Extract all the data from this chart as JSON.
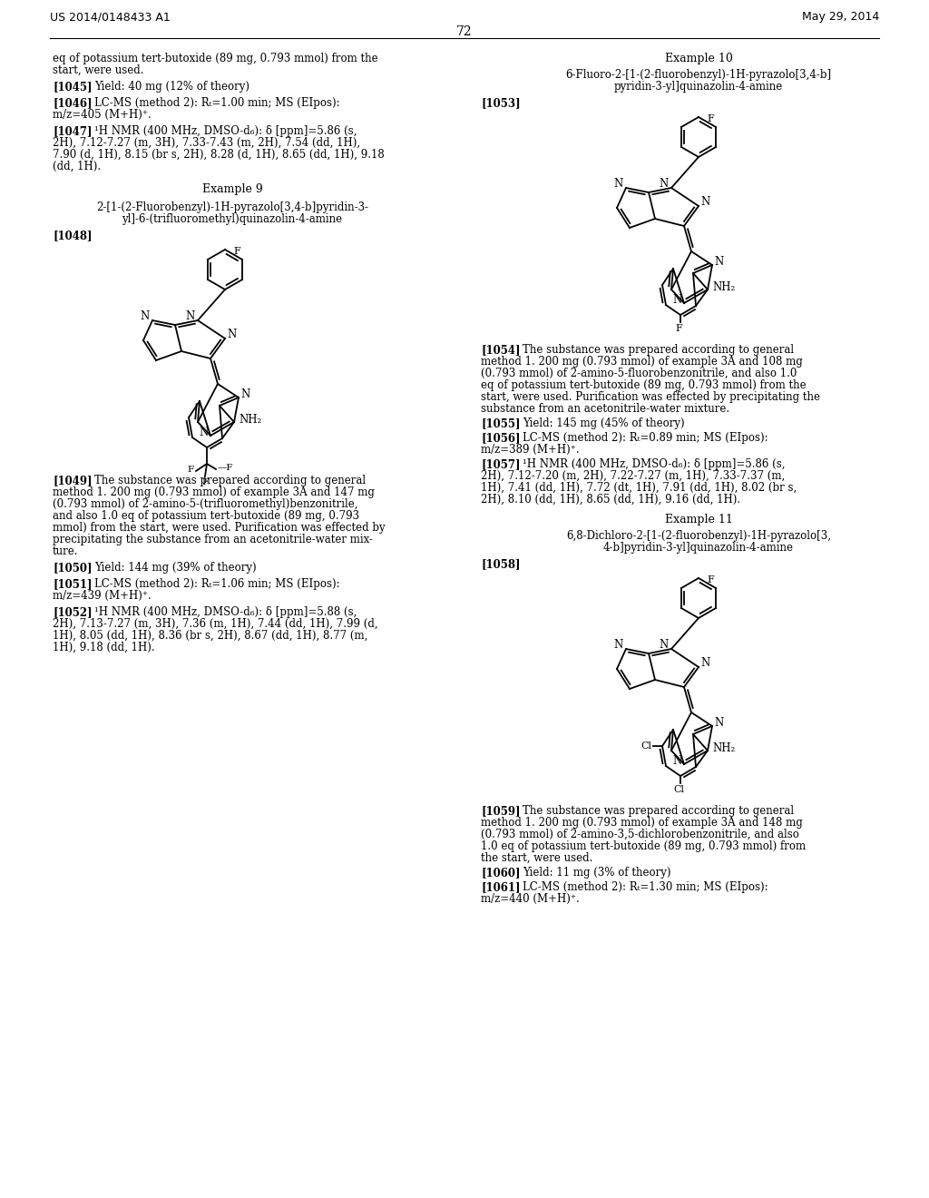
{
  "background_color": "#ffffff",
  "header_left": "US 2014/0148433 A1",
  "header_right": "May 29, 2014",
  "page_number": "72"
}
